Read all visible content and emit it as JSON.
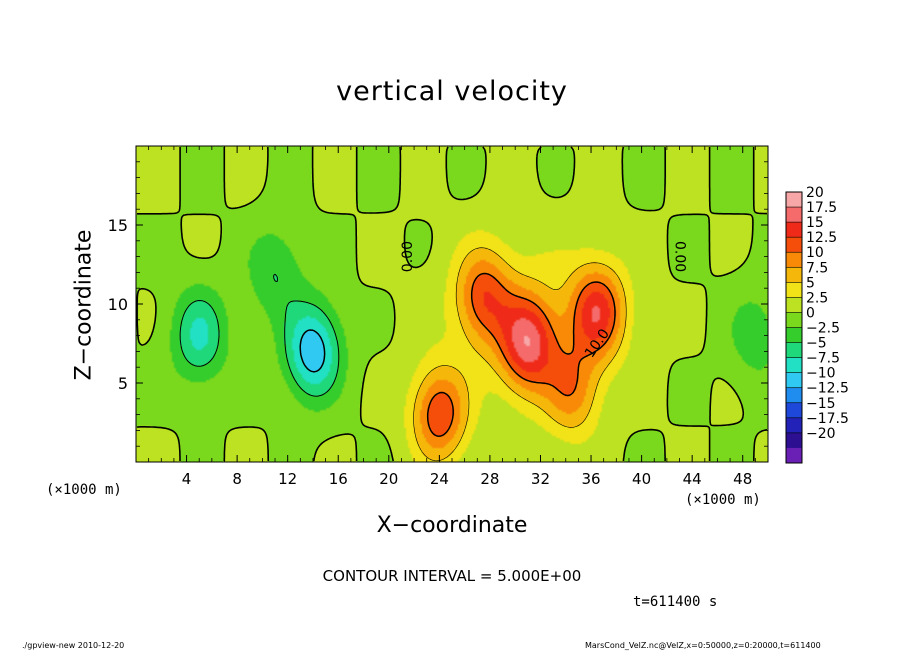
{
  "chart_data": {
    "type": "heatmap",
    "title": "vertical velocity",
    "xlabel": "X−coordinate",
    "ylabel": "Z−coordinate",
    "x_unit_label": "(×1000 m)",
    "xlim": [
      0,
      50
    ],
    "ylim": [
      0,
      20
    ],
    "x_ticks": [
      "4",
      "8",
      "12",
      "16",
      "20",
      "24",
      "28",
      "32",
      "36",
      "40",
      "44",
      "48"
    ],
    "y_ticks": [
      "5",
      "10",
      "15"
    ],
    "colorbar_labels": [
      "20",
      "17.5",
      "15",
      "12.5",
      "10",
      "7.5",
      "5",
      "2.5",
      "0",
      "−2.5",
      "−5",
      "−7.5",
      "−10",
      "−12.5",
      "−15",
      "−17.5",
      "−20"
    ],
    "colorbar_values": [
      20,
      17.5,
      15,
      12.5,
      10,
      7.5,
      5,
      2.5,
      0,
      -2.5,
      -5,
      -7.5,
      -10,
      -12.5,
      -15,
      -17.5,
      -20
    ],
    "contour_labels": [
      "0.00",
      "0.00",
      "10.0"
    ],
    "contour_interval_text": "CONTOUR INTERVAL = 5.000E+00",
    "time_text": "t=611400 s",
    "field_features": [
      {
        "x": 31.0,
        "z": 7.5,
        "value": 14
      },
      {
        "x": 36.5,
        "z": 9.5,
        "value": 13
      },
      {
        "x": 24.0,
        "z": 3.0,
        "value": 12
      },
      {
        "x": 27.5,
        "z": 10.5,
        "value": 10
      },
      {
        "x": 34.5,
        "z": 4.5,
        "value": 8
      },
      {
        "x": 14.0,
        "z": 7.0,
        "value": -12
      },
      {
        "x": 5.0,
        "z": 8.0,
        "value": -8
      },
      {
        "x": 11.0,
        "z": 12.0,
        "value": -5
      },
      {
        "x": 49.0,
        "z": 8.0,
        "value": -4
      }
    ]
  },
  "footer": {
    "left": "./gpview-new   2010-12-20",
    "right": "MarsCond_VelZ.nc@VelZ,x=0:50000,z=0:20000,t=611400"
  }
}
